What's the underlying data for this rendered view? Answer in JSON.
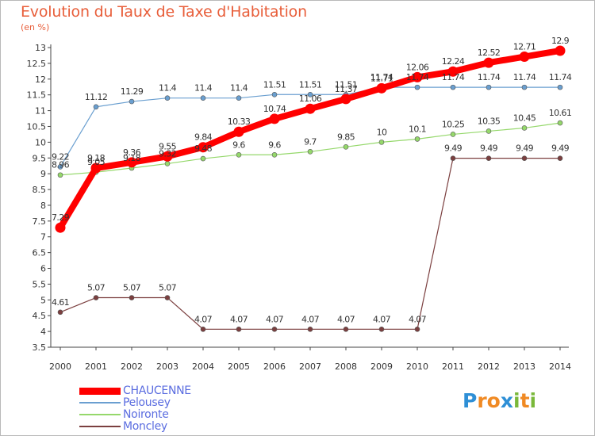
{
  "title": "Evolution du Taux de Taxe d'Habitation",
  "unit": "(en %)",
  "logo": {
    "letters": [
      {
        "ch": "P",
        "color": "#2e8fd6"
      },
      {
        "ch": "r",
        "color": "#f08a24"
      },
      {
        "ch": "o",
        "color": "#f08a24"
      },
      {
        "ch": "x",
        "color": "#2e8fd6"
      },
      {
        "ch": "i",
        "color": "#7ab83a"
      },
      {
        "ch": "t",
        "color": "#f08a24"
      },
      {
        "ch": "i",
        "color": "#7ab83a"
      }
    ]
  },
  "chart_data": {
    "type": "line",
    "title": "Evolution du Taux de Taxe d'Habitation",
    "ylabel": "(en %)",
    "x": [
      "2000",
      "2001",
      "2002",
      "2003",
      "2004",
      "2005",
      "2006",
      "2007",
      "2008",
      "2009",
      "2010",
      "2011",
      "2012",
      "2013",
      "2014"
    ],
    "ylim": [
      3.5,
      13
    ],
    "yticks": [
      "3.5",
      "4",
      "4.5",
      "5",
      "5.5",
      "6",
      "6.5",
      "7",
      "7.5",
      "8",
      "8.5",
      "9",
      "9.5",
      "10",
      "10.5",
      "11",
      "11.5",
      "12",
      "12.5",
      "13"
    ],
    "grid": false,
    "legend": "bottom-left",
    "series": [
      {
        "name": "CHAUCENNE",
        "color": "#ff0000",
        "values": [
          7.29,
          9.18,
          9.36,
          9.55,
          9.84,
          10.33,
          10.74,
          11.06,
          11.37,
          11.71,
          12.06,
          12.24,
          12.52,
          12.71,
          12.9
        ],
        "labels": [
          "7.29",
          "9.18",
          "9.36",
          "9.55",
          "9.84",
          "10.33",
          "10.74",
          "11.06",
          "11.37",
          "11.71",
          "12.06",
          "12.24",
          "12.52",
          "12.71",
          "12.9"
        ]
      },
      {
        "name": "Pelousey",
        "color": "#6a9fd0",
        "values": [
          9.22,
          11.12,
          11.29,
          11.4,
          11.4,
          11.4,
          11.51,
          11.51,
          11.51,
          11.74,
          11.74,
          11.74,
          11.74,
          11.74,
          11.74
        ],
        "labels": [
          "9.22",
          "11.12",
          "11.29",
          "11.4",
          "11.4",
          "11.4",
          "11.51",
          "11.51",
          "11.51",
          "11.74",
          "11.74",
          "11.74",
          "11.74",
          "11.74",
          "11.74"
        ]
      },
      {
        "name": "Noironte",
        "color": "#95d86b",
        "values": [
          8.96,
          9.05,
          9.18,
          9.32,
          9.48,
          9.6,
          9.6,
          9.7,
          9.85,
          10,
          10.1,
          10.25,
          10.35,
          10.45,
          10.61
        ],
        "labels": [
          "8.96",
          "9.05",
          "9.18",
          "9.32",
          "9.48",
          "9.6",
          "9.6",
          "9.7",
          "9.85",
          "10",
          "10.1",
          "10.25",
          "10.35",
          "10.45",
          "10.61"
        ]
      },
      {
        "name": "Moncley",
        "color": "#7b3f3f",
        "values": [
          4.61,
          5.07,
          5.07,
          5.07,
          4.07,
          4.07,
          4.07,
          4.07,
          4.07,
          4.07,
          4.07,
          9.49,
          9.49,
          9.49,
          9.49
        ],
        "labels": [
          "4.61",
          "5.07",
          "5.07",
          "5.07",
          "4.07",
          "4.07",
          "4.07",
          "4.07",
          "4.07",
          "4.07",
          "4.07",
          "9.49",
          "9.49",
          "9.49",
          "9.49"
        ]
      }
    ]
  }
}
